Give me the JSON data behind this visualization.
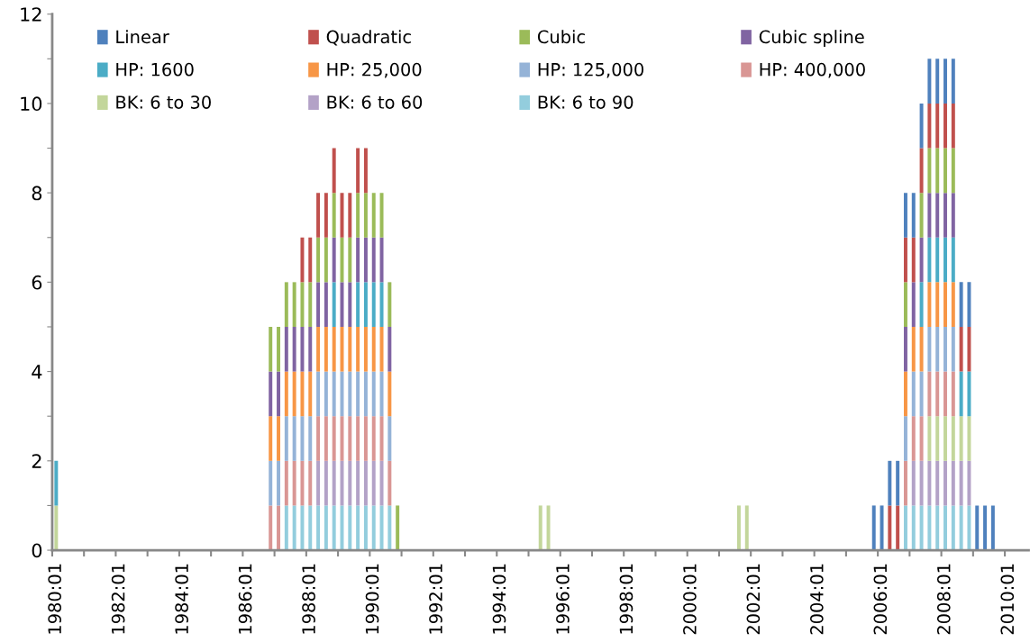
{
  "chart_data": {
    "type": "bar",
    "stacked": true,
    "legend": "top left",
    "grid": false,
    "categories": [
      "1980:01",
      null,
      null,
      null,
      null,
      null,
      null,
      null,
      "1982:01",
      null,
      null,
      null,
      null,
      null,
      null,
      null,
      "1984:01",
      null,
      null,
      null,
      null,
      null,
      null,
      null,
      "1986:01",
      null,
      null,
      null,
      null,
      null,
      null,
      null,
      "1988:01",
      null,
      null,
      null,
      null,
      null,
      null,
      null,
      "1990:01",
      null,
      null,
      null,
      null,
      null,
      null,
      null,
      "1992:01",
      null,
      null,
      null,
      null,
      null,
      null,
      null,
      "1994:01",
      null,
      null,
      null,
      null,
      null,
      null,
      null,
      "1996:01",
      null,
      null,
      null,
      null,
      null,
      null,
      null,
      "1998:01",
      null,
      null,
      null,
      null,
      null,
      null,
      null,
      "2000:01",
      null,
      null,
      null,
      null,
      null,
      null,
      null,
      "2002:01",
      null,
      null,
      null,
      null,
      null,
      null,
      null,
      "2004:01",
      null,
      null,
      null,
      null,
      null,
      null,
      null,
      "2006:01",
      null,
      null,
      null,
      null,
      null,
      null,
      null,
      "2008:01",
      null,
      null,
      null,
      null,
      null,
      null,
      null,
      "2010:01",
      null,
      null
    ],
    "ylim": [
      0,
      12
    ],
    "yticks": [
      0,
      {
        "value": 1,
        "label": null
      },
      2,
      {
        "value": 3,
        "label": null
      },
      4,
      {
        "value": 5,
        "label": null
      },
      6,
      {
        "value": 7,
        "label": null
      },
      8,
      {
        "value": 9,
        "label": null
      },
      10,
      {
        "value": 11,
        "label": null
      },
      12
    ],
    "series": [
      {
        "name": "BK: 6 to 90",
        "color": "#93cddd",
        "values": [
          null,
          null,
          null,
          null,
          null,
          null,
          null,
          null,
          null,
          null,
          null,
          null,
          null,
          null,
          null,
          null,
          null,
          null,
          null,
          null,
          null,
          null,
          null,
          null,
          null,
          null,
          null,
          null,
          null,
          1,
          1,
          1,
          1,
          1,
          1,
          1,
          1,
          1,
          1,
          1,
          1,
          1,
          1,
          null,
          null,
          null,
          null,
          null,
          null,
          null,
          null,
          null,
          null,
          null,
          null,
          null,
          null,
          null,
          null,
          null,
          null,
          null,
          null,
          null,
          null,
          null,
          null,
          null,
          null,
          null,
          null,
          null,
          null,
          null,
          null,
          null,
          null,
          null,
          null,
          null,
          null,
          null,
          null,
          null,
          null,
          null,
          null,
          null,
          null,
          null,
          null,
          null,
          null,
          null,
          null,
          null,
          null,
          null,
          null,
          null,
          null,
          null,
          null,
          null,
          null,
          null,
          null,
          1,
          1,
          1,
          1,
          1,
          1,
          1,
          1,
          1,
          null,
          null,
          null,
          null,
          null,
          null,
          null
        ]
      },
      {
        "name": "BK: 6 to 60",
        "color": "#b3a2c7",
        "values": [
          null,
          null,
          null,
          null,
          null,
          null,
          null,
          null,
          null,
          null,
          null,
          null,
          null,
          null,
          null,
          null,
          null,
          null,
          null,
          null,
          null,
          null,
          null,
          null,
          null,
          null,
          null,
          null,
          null,
          null,
          null,
          null,
          null,
          1,
          1,
          1,
          1,
          1,
          1,
          1,
          1,
          1,
          null,
          null,
          null,
          null,
          null,
          null,
          null,
          null,
          null,
          null,
          null,
          null,
          null,
          null,
          null,
          null,
          null,
          null,
          null,
          null,
          null,
          null,
          null,
          null,
          null,
          null,
          null,
          null,
          null,
          null,
          null,
          null,
          null,
          null,
          null,
          null,
          null,
          null,
          null,
          null,
          null,
          null,
          null,
          null,
          null,
          null,
          null,
          null,
          null,
          null,
          null,
          null,
          null,
          null,
          null,
          null,
          null,
          null,
          null,
          null,
          null,
          null,
          null,
          null,
          null,
          null,
          1,
          1,
          1,
          1,
          1,
          1,
          1,
          1,
          null,
          null,
          null,
          null,
          null,
          null,
          null
        ]
      },
      {
        "name": "BK: 6 to 30",
        "color": "#c3d69b",
        "values": [
          1,
          null,
          null,
          null,
          null,
          null,
          null,
          null,
          null,
          null,
          null,
          null,
          null,
          null,
          null,
          null,
          null,
          null,
          null,
          null,
          null,
          null,
          null,
          null,
          null,
          null,
          null,
          null,
          null,
          null,
          null,
          null,
          null,
          null,
          null,
          null,
          null,
          null,
          null,
          null,
          null,
          null,
          null,
          null,
          null,
          null,
          null,
          null,
          null,
          null,
          null,
          null,
          null,
          null,
          null,
          null,
          null,
          null,
          null,
          null,
          null,
          1,
          1,
          null,
          null,
          null,
          null,
          null,
          null,
          null,
          null,
          null,
          null,
          null,
          null,
          null,
          null,
          null,
          null,
          null,
          null,
          null,
          null,
          null,
          null,
          null,
          1,
          1,
          null,
          null,
          null,
          null,
          null,
          null,
          null,
          null,
          null,
          null,
          null,
          null,
          null,
          null,
          null,
          null,
          null,
          null,
          null,
          null,
          null,
          null,
          1,
          1,
          1,
          1,
          1,
          1,
          null,
          null,
          null,
          null,
          null,
          null,
          null
        ]
      },
      {
        "name": "HP: 400,000",
        "color": "#d99694",
        "values": [
          null,
          null,
          null,
          null,
          null,
          null,
          null,
          null,
          null,
          null,
          null,
          null,
          null,
          null,
          null,
          null,
          null,
          null,
          null,
          null,
          null,
          null,
          null,
          null,
          null,
          null,
          null,
          1,
          1,
          1,
          1,
          1,
          1,
          1,
          1,
          1,
          1,
          1,
          1,
          1,
          1,
          1,
          1,
          null,
          null,
          null,
          null,
          null,
          null,
          null,
          null,
          null,
          null,
          null,
          null,
          null,
          null,
          null,
          null,
          null,
          null,
          null,
          null,
          null,
          null,
          null,
          null,
          null,
          null,
          null,
          null,
          null,
          null,
          null,
          null,
          null,
          null,
          null,
          null,
          null,
          null,
          null,
          null,
          null,
          null,
          null,
          null,
          null,
          null,
          null,
          null,
          null,
          null,
          null,
          null,
          null,
          null,
          null,
          null,
          null,
          null,
          null,
          null,
          null,
          null,
          null,
          null,
          1,
          1,
          1,
          1,
          1,
          1,
          1,
          null,
          null,
          null,
          null,
          null,
          null,
          null,
          null,
          null
        ]
      },
      {
        "name": "HP: 125,000",
        "color": "#95b3d7",
        "values": [
          null,
          null,
          null,
          null,
          null,
          null,
          null,
          null,
          null,
          null,
          null,
          null,
          null,
          null,
          null,
          null,
          null,
          null,
          null,
          null,
          null,
          null,
          null,
          null,
          null,
          null,
          null,
          1,
          1,
          1,
          1,
          1,
          1,
          1,
          1,
          1,
          1,
          1,
          1,
          1,
          1,
          1,
          1,
          null,
          null,
          null,
          null,
          null,
          null,
          null,
          null,
          null,
          null,
          null,
          null,
          null,
          null,
          null,
          null,
          null,
          null,
          null,
          null,
          null,
          null,
          null,
          null,
          null,
          null,
          null,
          null,
          null,
          null,
          null,
          null,
          null,
          null,
          null,
          null,
          null,
          null,
          null,
          null,
          null,
          null,
          null,
          null,
          null,
          null,
          null,
          null,
          null,
          null,
          null,
          null,
          null,
          null,
          null,
          null,
          null,
          null,
          null,
          null,
          null,
          null,
          null,
          null,
          1,
          1,
          1,
          1,
          1,
          1,
          1,
          null,
          null,
          null,
          null,
          null,
          null,
          null,
          null,
          null
        ]
      },
      {
        "name": "HP: 25,000",
        "color": "#f79646",
        "values": [
          null,
          null,
          null,
          null,
          null,
          null,
          null,
          null,
          null,
          null,
          null,
          null,
          null,
          null,
          null,
          null,
          null,
          null,
          null,
          null,
          null,
          null,
          null,
          null,
          null,
          null,
          null,
          1,
          1,
          1,
          1,
          1,
          1,
          1,
          1,
          1,
          1,
          1,
          1,
          1,
          1,
          1,
          1,
          null,
          null,
          null,
          null,
          null,
          null,
          null,
          null,
          null,
          null,
          null,
          null,
          null,
          null,
          null,
          null,
          null,
          null,
          null,
          null,
          null,
          null,
          null,
          null,
          null,
          null,
          null,
          null,
          null,
          null,
          null,
          null,
          null,
          null,
          null,
          null,
          null,
          null,
          null,
          null,
          null,
          null,
          null,
          null,
          null,
          null,
          null,
          null,
          null,
          null,
          null,
          null,
          null,
          null,
          null,
          null,
          null,
          null,
          null,
          null,
          null,
          null,
          null,
          null,
          1,
          1,
          1,
          1,
          1,
          1,
          1,
          null,
          null,
          null,
          null,
          null,
          null,
          null,
          null,
          null
        ]
      },
      {
        "name": "HP: 1600",
        "color": "#4bacc6",
        "values": [
          1,
          null,
          null,
          null,
          null,
          null,
          null,
          null,
          null,
          null,
          null,
          null,
          null,
          null,
          null,
          null,
          null,
          null,
          null,
          null,
          null,
          null,
          null,
          null,
          null,
          null,
          null,
          null,
          null,
          null,
          null,
          null,
          null,
          null,
          null,
          1,
          null,
          null,
          1,
          1,
          1,
          1,
          null,
          null,
          null,
          null,
          null,
          null,
          null,
          null,
          null,
          null,
          null,
          null,
          null,
          null,
          null,
          null,
          null,
          null,
          null,
          null,
          null,
          null,
          null,
          null,
          null,
          null,
          null,
          null,
          null,
          null,
          null,
          null,
          null,
          null,
          null,
          null,
          null,
          null,
          null,
          null,
          null,
          null,
          null,
          null,
          null,
          null,
          null,
          null,
          null,
          null,
          null,
          null,
          null,
          null,
          null,
          null,
          null,
          null,
          null,
          null,
          null,
          null,
          null,
          null,
          null,
          null,
          null,
          1,
          1,
          1,
          1,
          1,
          1,
          1,
          null,
          null,
          null,
          null,
          null,
          null,
          null
        ]
      },
      {
        "name": "Cubic spline",
        "color": "#8064a2",
        "values": [
          null,
          null,
          null,
          null,
          null,
          null,
          null,
          null,
          null,
          null,
          null,
          null,
          null,
          null,
          null,
          null,
          null,
          null,
          null,
          null,
          null,
          null,
          null,
          null,
          null,
          null,
          null,
          1,
          1,
          1,
          1,
          1,
          1,
          1,
          1,
          1,
          1,
          1,
          1,
          1,
          1,
          1,
          1,
          null,
          null,
          null,
          null,
          null,
          null,
          null,
          null,
          null,
          null,
          null,
          null,
          null,
          null,
          null,
          null,
          null,
          null,
          null,
          null,
          null,
          null,
          null,
          null,
          null,
          null,
          null,
          null,
          null,
          null,
          null,
          null,
          null,
          null,
          null,
          null,
          null,
          null,
          null,
          null,
          null,
          null,
          null,
          null,
          null,
          null,
          null,
          null,
          null,
          null,
          null,
          null,
          null,
          null,
          null,
          null,
          null,
          null,
          null,
          null,
          null,
          null,
          null,
          null,
          1,
          1,
          1,
          1,
          1,
          1,
          1,
          null,
          null,
          null,
          null,
          null,
          null,
          null,
          null,
          null
        ]
      },
      {
        "name": "Cubic",
        "color": "#9bbb59",
        "values": [
          null,
          null,
          null,
          null,
          null,
          null,
          null,
          null,
          null,
          null,
          null,
          null,
          null,
          null,
          null,
          null,
          null,
          null,
          null,
          null,
          null,
          null,
          null,
          null,
          null,
          null,
          null,
          1,
          1,
          1,
          1,
          1,
          1,
          1,
          1,
          1,
          1,
          1,
          1,
          1,
          1,
          1,
          1,
          1,
          null,
          null,
          null,
          null,
          null,
          null,
          null,
          null,
          null,
          null,
          null,
          null,
          null,
          null,
          null,
          null,
          null,
          null,
          null,
          null,
          null,
          null,
          null,
          null,
          null,
          null,
          null,
          null,
          null,
          null,
          null,
          null,
          null,
          null,
          null,
          null,
          null,
          null,
          null,
          null,
          null,
          null,
          null,
          null,
          null,
          null,
          null,
          null,
          null,
          null,
          null,
          null,
          null,
          null,
          null,
          null,
          null,
          null,
          null,
          null,
          null,
          null,
          null,
          1,
          null,
          1,
          1,
          1,
          1,
          1,
          null,
          null,
          null,
          null,
          null,
          null,
          null,
          null,
          null
        ]
      },
      {
        "name": "Quadratic",
        "color": "#c0504d",
        "values": [
          null,
          null,
          null,
          null,
          null,
          null,
          null,
          null,
          null,
          null,
          null,
          null,
          null,
          null,
          null,
          null,
          null,
          null,
          null,
          null,
          null,
          null,
          null,
          null,
          null,
          null,
          null,
          null,
          null,
          null,
          null,
          1,
          1,
          1,
          1,
          1,
          1,
          1,
          1,
          1,
          null,
          null,
          null,
          null,
          null,
          null,
          null,
          null,
          null,
          null,
          null,
          null,
          null,
          null,
          null,
          null,
          null,
          null,
          null,
          null,
          null,
          null,
          null,
          null,
          null,
          null,
          null,
          null,
          null,
          null,
          null,
          null,
          null,
          null,
          null,
          null,
          null,
          null,
          null,
          null,
          null,
          null,
          null,
          null,
          null,
          null,
          null,
          null,
          null,
          null,
          null,
          null,
          null,
          null,
          null,
          null,
          null,
          null,
          null,
          null,
          null,
          null,
          null,
          null,
          null,
          1,
          1,
          1,
          1,
          1,
          1,
          1,
          1,
          1,
          1,
          1,
          null,
          null,
          null,
          null,
          null,
          null,
          null
        ]
      },
      {
        "name": "Linear",
        "color": "#4f81bd",
        "values": [
          null,
          null,
          null,
          null,
          null,
          null,
          null,
          null,
          null,
          null,
          null,
          null,
          null,
          null,
          null,
          null,
          null,
          null,
          null,
          null,
          null,
          null,
          null,
          null,
          null,
          null,
          null,
          null,
          null,
          null,
          null,
          null,
          null,
          null,
          null,
          null,
          null,
          null,
          null,
          null,
          null,
          null,
          null,
          null,
          null,
          null,
          null,
          null,
          null,
          null,
          null,
          null,
          null,
          null,
          null,
          null,
          null,
          null,
          null,
          null,
          null,
          null,
          null,
          null,
          null,
          null,
          null,
          null,
          null,
          null,
          null,
          null,
          null,
          null,
          null,
          null,
          null,
          null,
          null,
          null,
          null,
          null,
          null,
          null,
          null,
          null,
          null,
          null,
          null,
          null,
          null,
          null,
          null,
          null,
          null,
          null,
          null,
          null,
          null,
          null,
          null,
          null,
          null,
          1,
          1,
          1,
          1,
          1,
          1,
          1,
          1,
          1,
          1,
          1,
          1,
          1,
          1,
          1,
          1,
          null,
          null,
          null,
          null
        ]
      }
    ]
  }
}
